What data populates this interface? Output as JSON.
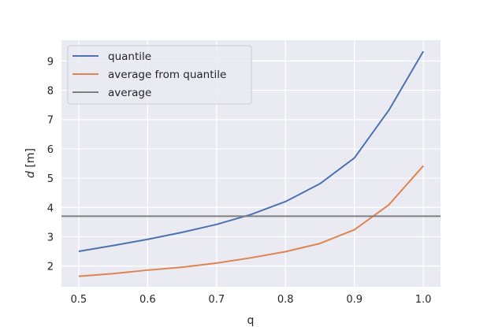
{
  "chart_data": {
    "type": "line",
    "title": "",
    "xlabel": "q",
    "ylabel_var": "d",
    "ylabel_unit": " [m]",
    "xlim": [
      0.475,
      1.025
    ],
    "ylim": [
      1.29,
      9.71
    ],
    "xticks": [
      "0.5",
      "0.6",
      "0.7",
      "0.8",
      "0.9",
      "1.0"
    ],
    "yticks": [
      "2",
      "3",
      "4",
      "5",
      "6",
      "7",
      "8",
      "9"
    ],
    "grid": true,
    "legend_position": "top-left",
    "x": [
      0.5,
      0.55,
      0.6,
      0.65,
      0.7,
      0.75,
      0.8,
      0.85,
      0.9,
      0.95,
      1.0
    ],
    "series": [
      {
        "name": "quantile",
        "color": "#4c72b0",
        "values": [
          2.5,
          2.7,
          2.91,
          3.15,
          3.42,
          3.76,
          4.2,
          4.81,
          5.69,
          7.32,
          9.33
        ]
      },
      {
        "name": "average from quantile",
        "color": "#dd8452",
        "values": [
          1.65,
          1.74,
          1.86,
          1.96,
          2.1,
          2.28,
          2.49,
          2.77,
          3.24,
          4.09,
          5.42
        ]
      },
      {
        "name": "average",
        "color": "#7f7f7f",
        "constant": 3.7
      }
    ],
    "background": "#eaeaf2"
  }
}
